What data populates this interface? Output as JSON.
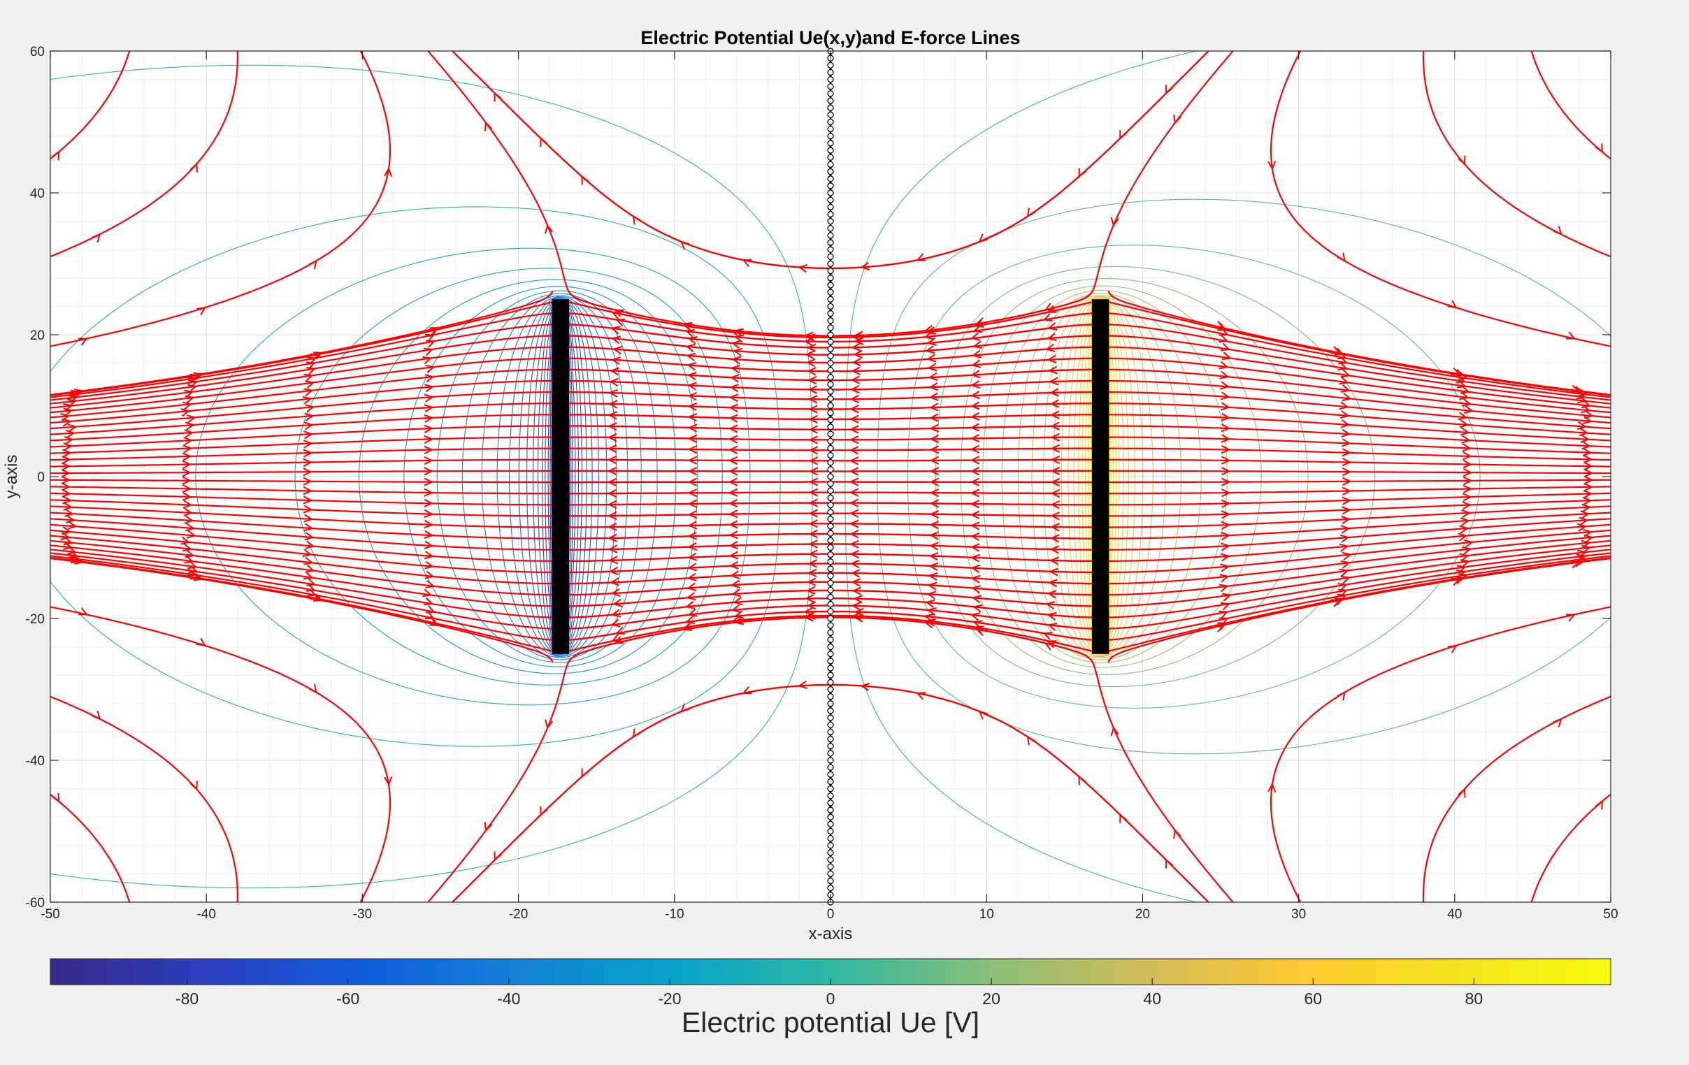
{
  "chart_data": {
    "type": "contour",
    "title": "Electric Potential Ue(x,y)and E-force Lines",
    "xlabel": "x-axis",
    "ylabel": "y-axis",
    "xlim": [
      -50,
      50
    ],
    "ylim": [
      -60,
      60
    ],
    "xticks": [
      -50,
      -40,
      -30,
      -20,
      -10,
      0,
      10,
      20,
      30,
      40,
      50
    ],
    "yticks": [
      -60,
      -40,
      -20,
      0,
      20,
      40,
      60
    ],
    "grid": true,
    "electrodes": [
      {
        "x": -17.3,
        "y_from": -25,
        "y_to": 25,
        "potential_V": -100
      },
      {
        "x": 17.3,
        "y_from": -25,
        "y_to": 25,
        "potential_V": 100
      }
    ],
    "zero_potential_line_x": 0,
    "series": [
      {
        "kind": "equipotential contours",
        "colormap": "parula"
      },
      {
        "kind": "field lines with arrows",
        "color": "#ff0000"
      }
    ],
    "colorbar": {
      "label": "Electric potential Ue [V]",
      "range": [
        -97,
        97
      ],
      "ticks": [
        -80,
        -60,
        -40,
        -20,
        0,
        20,
        40,
        60,
        80
      ],
      "colormap": "parula",
      "position": "bottom"
    }
  },
  "colors": {
    "background": "#f0f0f0",
    "axes_background": "#ffffff",
    "field_line": "#ff0000",
    "electrode": "#000000"
  }
}
